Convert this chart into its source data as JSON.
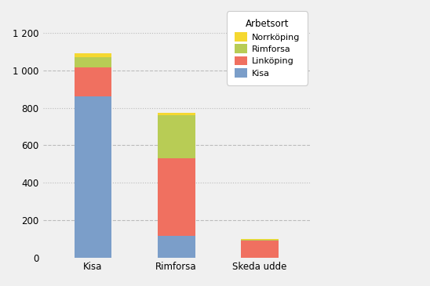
{
  "categories": [
    "Kisa",
    "Rimforsa",
    "Skeda udde"
  ],
  "series": {
    "Kisa": [
      860,
      115,
      0
    ],
    "Linköping": [
      155,
      415,
      88
    ],
    "Rimforsa": [
      55,
      230,
      5
    ],
    "Norrköping": [
      20,
      15,
      5
    ]
  },
  "colors": {
    "Kisa": "#7b9ec9",
    "Linköping": "#f07060",
    "Rimforsa": "#b8cc55",
    "Norrköping": "#f5d830"
  },
  "legend_title": "Arbetsort",
  "legend_order": [
    "Norrköping",
    "Rimforsa",
    "Linköping",
    "Kisa"
  ],
  "ylim": [
    0,
    1300
  ],
  "yticks": [
    0,
    200,
    400,
    600,
    800,
    1000,
    1200
  ],
  "background_color": "#f0f0f0",
  "plot_bg_color": "#f0f0f0",
  "grid_color": "#bbbbbb",
  "bar_width": 0.45
}
